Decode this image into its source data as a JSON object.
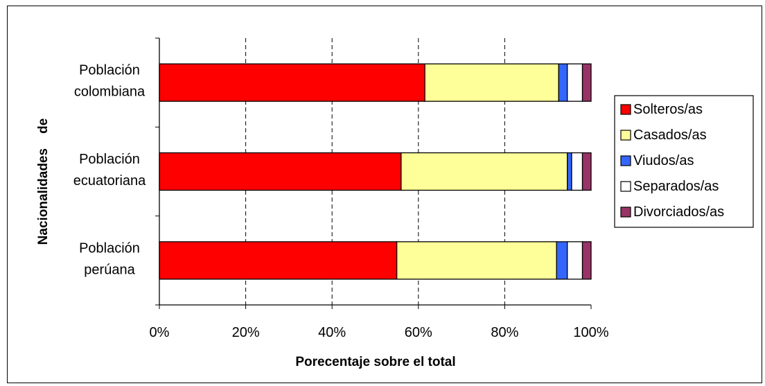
{
  "chart_data": {
    "type": "bar",
    "orientation": "horizontal",
    "stacked": "percent",
    "categories": [
      [
        "Población",
        "colombiana"
      ],
      [
        "Población",
        "ecuatoriana"
      ],
      [
        "Población",
        "perúana"
      ]
    ],
    "series": [
      {
        "name": "Solteros/as",
        "color": "#ff0000",
        "values": [
          61.5,
          56.0,
          55.0
        ]
      },
      {
        "name": "Casados/as",
        "color": "#ffff99",
        "values": [
          31.0,
          38.5,
          37.0
        ]
      },
      {
        "name": "Viudos/as",
        "color": "#3366ff",
        "values": [
          2.0,
          1.0,
          2.5
        ]
      },
      {
        "name": "Separados/as",
        "color": "#ffffff",
        "values": [
          3.5,
          2.5,
          3.5
        ]
      },
      {
        "name": "Divorciados/as",
        "color": "#993366",
        "values": [
          2.0,
          2.0,
          2.0
        ]
      }
    ],
    "xlim": [
      0,
      100
    ],
    "xticks": [
      "0%",
      "20%",
      "40%",
      "60%",
      "80%",
      "100%"
    ],
    "xlabel": "Porecentaje sobre el total",
    "ylabel": "Nacionalidades    de",
    "grid": "vertical dashed",
    "legend": "right"
  }
}
